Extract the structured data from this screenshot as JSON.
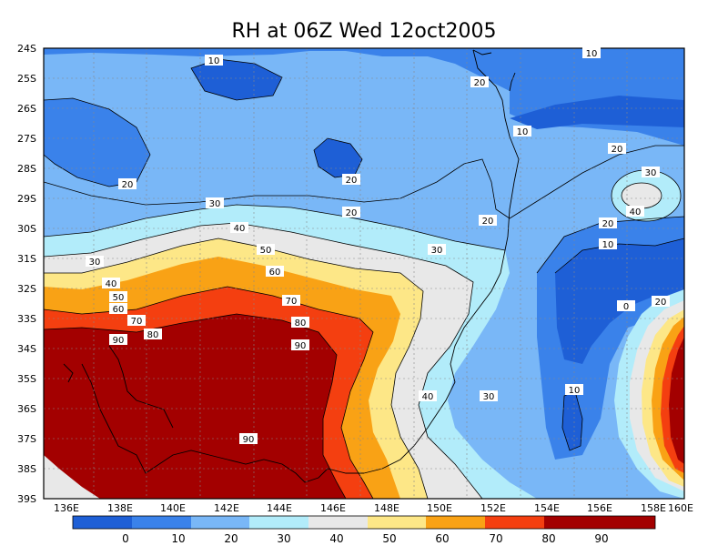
{
  "title": "RH at 06Z Wed 12oct2005",
  "lat_ticks": [
    "24S",
    "25S",
    "26S",
    "27S",
    "28S",
    "29S",
    "30S",
    "31S",
    "32S",
    "33S",
    "34S",
    "35S",
    "36S",
    "37S",
    "38S",
    "39S"
  ],
  "lon_ticks": [
    "136E",
    "138E",
    "140E",
    "142E",
    "144E",
    "146E",
    "148E",
    "150E",
    "152E",
    "154E",
    "156E",
    "158E",
    "160E"
  ],
  "contour_labels": [
    "10",
    "20",
    "10",
    "10",
    "20",
    "20",
    "20",
    "30",
    "20",
    "20",
    "30",
    "40",
    "20",
    "10",
    "40",
    "50",
    "60",
    "70",
    "80",
    "90",
    "30",
    "30",
    "40",
    "50",
    "60",
    "70",
    "80",
    "90",
    "0",
    "20",
    "10",
    "40",
    "30",
    "90"
  ],
  "colorbar": {
    "colors": [
      "#1e5fd6",
      "#3a82ea",
      "#79b7f7",
      "#b2ecfa",
      "#e8e8e8",
      "#fde787",
      "#f9a215",
      "#f43f10",
      "#a30000"
    ],
    "labels": [
      "0",
      "10",
      "20",
      "30",
      "40",
      "50",
      "60",
      "70",
      "80",
      "90"
    ]
  }
}
